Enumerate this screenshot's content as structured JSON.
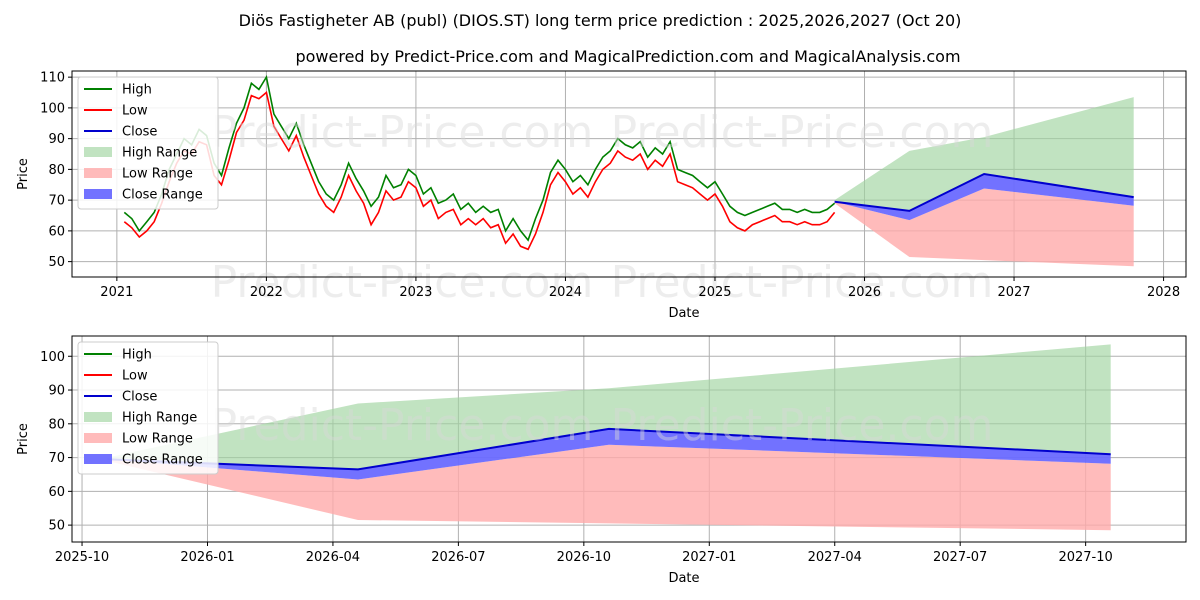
{
  "header": {
    "title": "Diös Fastigheter AB (publ) (DIOS.ST) long term price prediction : 2025,2026,2027 (Oct 20)",
    "subtitle": "powered by Predict-Price.com and MagicalPrediction.com and MagicalAnalysis.com"
  },
  "watermark": "Predict-Price.com",
  "colors": {
    "high": "#008000",
    "low": "#ff0000",
    "close": "#0000cd",
    "high_range": "#9fd49f",
    "low_range": "#ffaaaa",
    "close_range": "#6a6aff"
  },
  "legend": [
    "High",
    "Low",
    "Close",
    "High Range",
    "Low Range",
    "Close Range"
  ],
  "chart_data": [
    {
      "type": "line",
      "name": "long-term",
      "xlabel": "Date",
      "ylabel": "Price",
      "xlim": [
        2020.7,
        2028.15
      ],
      "ylim": [
        45,
        112
      ],
      "xticks": [
        2021,
        2022,
        2023,
        2024,
        2025,
        2026,
        2027,
        2028
      ],
      "xtick_labels": [
        "2021",
        "2022",
        "2023",
        "2024",
        "2025",
        "2026",
        "2027",
        "2028"
      ],
      "yticks": [
        50,
        60,
        70,
        80,
        90,
        100,
        110
      ],
      "legend_position": "top-left",
      "history": {
        "x": [
          2021.05,
          2021.1,
          2021.15,
          2021.2,
          2021.25,
          2021.3,
          2021.35,
          2021.4,
          2021.45,
          2021.5,
          2021.55,
          2021.6,
          2021.65,
          2021.7,
          2021.75,
          2021.8,
          2021.85,
          2021.9,
          2021.95,
          2022.0,
          2022.05,
          2022.1,
          2022.15,
          2022.2,
          2022.25,
          2022.3,
          2022.35,
          2022.4,
          2022.45,
          2022.5,
          2022.55,
          2022.6,
          2022.65,
          2022.7,
          2022.75,
          2022.8,
          2022.85,
          2022.9,
          2022.95,
          2023.0,
          2023.05,
          2023.1,
          2023.15,
          2023.2,
          2023.25,
          2023.3,
          2023.35,
          2023.4,
          2023.45,
          2023.5,
          2023.55,
          2023.6,
          2023.65,
          2023.7,
          2023.75,
          2023.8,
          2023.85,
          2023.9,
          2023.95,
          2024.0,
          2024.05,
          2024.1,
          2024.15,
          2024.2,
          2024.25,
          2024.3,
          2024.35,
          2024.4,
          2024.45,
          2024.5,
          2024.55,
          2024.6,
          2024.65,
          2024.7,
          2024.75,
          2024.8,
          2024.85,
          2024.9,
          2024.95,
          2025.0,
          2025.05,
          2025.1,
          2025.15,
          2025.2,
          2025.25,
          2025.3,
          2025.35,
          2025.4,
          2025.45,
          2025.5,
          2025.55,
          2025.6,
          2025.65,
          2025.7,
          2025.75,
          2025.8
        ],
        "high": [
          66,
          64,
          60,
          63,
          66,
          72,
          80,
          85,
          90,
          88,
          93,
          91,
          82,
          78,
          87,
          95,
          100,
          108,
          106,
          110,
          98,
          94,
          90,
          95,
          88,
          82,
          76,
          72,
          70,
          75,
          82,
          77,
          73,
          68,
          71,
          78,
          74,
          75,
          80,
          78,
          72,
          74,
          69,
          70,
          72,
          67,
          69,
          66,
          68,
          66,
          67,
          60,
          64,
          60,
          57,
          64,
          70,
          79,
          83,
          80,
          76,
          78,
          75,
          80,
          84,
          86,
          90,
          88,
          87,
          89,
          84,
          87,
          85,
          89,
          80,
          79,
          78,
          76,
          74,
          76,
          72,
          68,
          66,
          65,
          66,
          67,
          68,
          69,
          67,
          67,
          66,
          67,
          66,
          66,
          67,
          69
        ],
        "low": [
          63,
          61,
          58,
          60,
          63,
          69,
          76,
          82,
          86,
          85,
          89,
          88,
          78,
          75,
          83,
          92,
          96,
          104,
          103,
          105,
          94,
          90,
          86,
          91,
          84,
          78,
          72,
          68,
          66,
          71,
          78,
          73,
          69,
          62,
          66,
          73,
          70,
          71,
          76,
          74,
          68,
          70,
          64,
          66,
          67,
          62,
          64,
          62,
          64,
          61,
          62,
          56,
          59,
          55,
          54,
          59,
          66,
          75,
          79,
          76,
          72,
          74,
          71,
          76,
          80,
          82,
          86,
          84,
          83,
          85,
          80,
          83,
          81,
          85,
          76,
          75,
          74,
          72,
          70,
          72,
          68,
          63,
          61,
          60,
          62,
          63,
          64,
          65,
          63,
          63,
          62,
          63,
          62,
          62,
          63,
          66
        ]
      },
      "forecast": {
        "x": [
          2025.8,
          2026.3,
          2026.8,
          2027.8
        ],
        "close": [
          69.5,
          66.5,
          78.5,
          71
        ],
        "close_range_low": [
          69.5,
          63.5,
          73.8,
          68.2
        ],
        "high_range_top": [
          70,
          86,
          90.5,
          103.5
        ],
        "low_range_bottom": [
          69,
          51.5,
          50.5,
          48.5
        ]
      }
    },
    {
      "type": "line",
      "name": "forecast-zoom",
      "xlabel": "Date",
      "ylabel": "Price",
      "xlim": [
        2025.73,
        2027.95
      ],
      "ylim": [
        45,
        106
      ],
      "xticks": [
        2025.75,
        2026.0,
        2026.25,
        2026.5,
        2026.75,
        2027.0,
        2027.25,
        2027.5,
        2027.75
      ],
      "xtick_labels": [
        "2025-10",
        "2026-01",
        "2026-04",
        "2026-07",
        "2026-10",
        "2027-01",
        "2027-04",
        "2027-07",
        "2027-10"
      ],
      "yticks": [
        50,
        60,
        70,
        80,
        90,
        100
      ],
      "legend_position": "top-left",
      "forecast": {
        "x": [
          2025.8,
          2026.3,
          2026.8,
          2027.8
        ],
        "close": [
          69.5,
          66.5,
          78.5,
          71
        ],
        "close_range_low": [
          69.5,
          63.5,
          73.8,
          68.2
        ],
        "high_range_top": [
          70,
          86,
          90.5,
          103.5
        ],
        "low_range_bottom": [
          69,
          51.5,
          50.5,
          48.5
        ]
      }
    }
  ]
}
